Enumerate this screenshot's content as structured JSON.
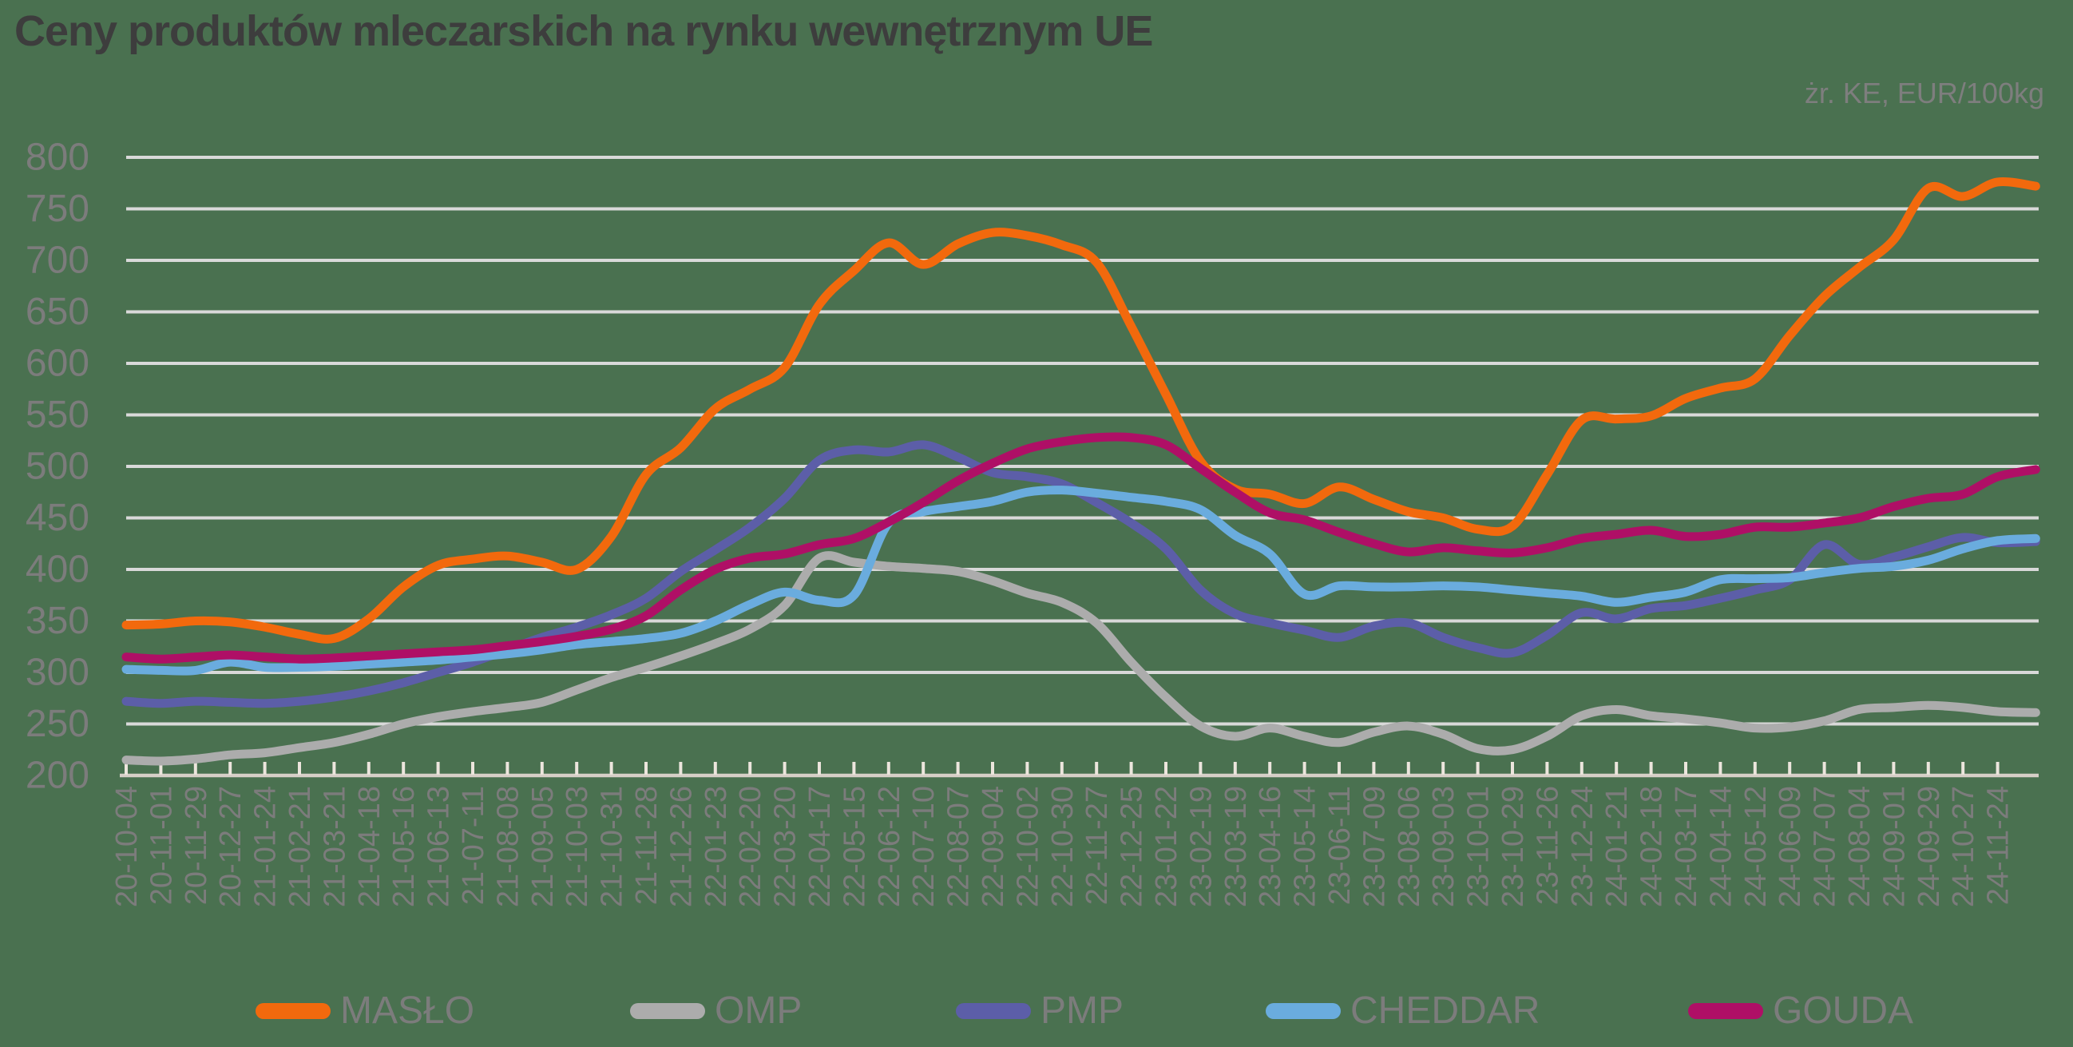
{
  "title": "Ceny produktów mleczarskich na rynku wewnętrznym UE",
  "source_note": "żr. KE, EUR/100kg",
  "colors": {
    "background": "#4a7150",
    "gridline": "#d9d9d9",
    "axis_line": "#d6cfc7",
    "tick": "#ece5dd",
    "axis_text": "#7c7c7c",
    "title_text": "#3d3d3d",
    "source_text": "#7e7e7e"
  },
  "chart_data": {
    "type": "line",
    "title": "Ceny produktów mleczarskich na rynku wewnętrznym UE",
    "unit_note": "żr. KE, EUR/100kg",
    "ylim": [
      200,
      800
    ],
    "ytick_step": 50,
    "y_ticks": [
      800,
      750,
      700,
      650,
      600,
      550,
      500,
      450,
      400,
      350,
      300,
      250,
      200
    ],
    "grid": "horizontal",
    "legend_position": "bottom",
    "x_labels_rotated_90": true,
    "categories": [
      "20-10-04",
      "20-11-01",
      "20-11-29",
      "20-12-27",
      "21-01-24",
      "21-02-21",
      "21-03-21",
      "21-04-18",
      "21-05-16",
      "21-06-13",
      "21-07-11",
      "21-08-08",
      "21-09-05",
      "21-10-03",
      "21-10-31",
      "21-11-28",
      "21-12-26",
      "22-01-23",
      "22-02-20",
      "22-03-20",
      "22-04-17",
      "22-05-15",
      "22-06-12",
      "22-07-10",
      "22-08-07",
      "22-09-04",
      "22-10-02",
      "22-10-30",
      "22-11-27",
      "22-12-25",
      "23-01-22",
      "23-02-19",
      "23-03-19",
      "23-04-16",
      "23-05-14",
      "23-06-11",
      "23-07-09",
      "23-08-06",
      "23-09-03",
      "23-10-01",
      "23-10-29",
      "23-11-26",
      "23-12-24",
      "24-01-21",
      "24-02-18",
      "24-03-17",
      "24-04-14",
      "24-05-12",
      "24-06-09",
      "24-07-07",
      "24-08-04",
      "24-09-01",
      "24-09-29",
      "24-10-27",
      "24-11-24"
    ],
    "series": [
      {
        "name": "MASŁO",
        "color": "#f2690d",
        "values": [
          346,
          347,
          350,
          349,
          344,
          337,
          333,
          352,
          383,
          404,
          410,
          413,
          407,
          400,
          432,
          492,
          518,
          556,
          575,
          596,
          657,
          690,
          717,
          696,
          716,
          727,
          724,
          715,
          698,
          636,
          570,
          505,
          478,
          473,
          464,
          480,
          468,
          456,
          450,
          439,
          442,
          492,
          545,
          546,
          549,
          566,
          576,
          585,
          627,
          665,
          693,
          720,
          770,
          762,
          776
        ],
        "tail_value": 772
      },
      {
        "name": "OMP",
        "color": "#acacac",
        "values": [
          215,
          214,
          216,
          220,
          222,
          227,
          232,
          240,
          250,
          257,
          262,
          266,
          271,
          283,
          295,
          305,
          316,
          328,
          342,
          365,
          411,
          407,
          403,
          401,
          398,
          389,
          377,
          368,
          348,
          310,
          276,
          248,
          238,
          246,
          238,
          232,
          242,
          248,
          240,
          226,
          225,
          238,
          258,
          264,
          258,
          255,
          251,
          246,
          247,
          253,
          264,
          266,
          268,
          266,
          262
        ],
        "tail_value": 261
      },
      {
        "name": "PMP",
        "color": "#5c5ea8",
        "values": [
          272,
          270,
          272,
          271,
          270,
          272,
          276,
          282,
          290,
          300,
          310,
          322,
          334,
          344,
          356,
          372,
          398,
          419,
          441,
          469,
          506,
          516,
          514,
          521,
          509,
          494,
          490,
          483,
          465,
          445,
          420,
          380,
          357,
          348,
          341,
          334,
          345,
          348,
          334,
          324,
          319,
          336,
          358,
          352,
          362,
          365,
          372,
          380,
          390,
          424,
          405,
          412,
          422,
          431,
          426
        ],
        "tail_value": 427
      },
      {
        "name": "CHEDDAR",
        "color": "#6aacde",
        "values": [
          303,
          302,
          302,
          310,
          305,
          305,
          306,
          308,
          310,
          312,
          315,
          318,
          322,
          327,
          330,
          333,
          338,
          350,
          366,
          378,
          370,
          375,
          445,
          456,
          461,
          466,
          475,
          477,
          474,
          470,
          466,
          458,
          433,
          415,
          376,
          384,
          383,
          383,
          384,
          383,
          380,
          377,
          374,
          368,
          373,
          378,
          390,
          391,
          392,
          397,
          401,
          403,
          409,
          420,
          428
        ],
        "tail_value": 430
      },
      {
        "name": "GOUDA",
        "color": "#af0f66",
        "values": [
          315,
          313,
          315,
          317,
          315,
          313,
          314,
          316,
          318,
          320,
          322,
          326,
          330,
          335,
          342,
          355,
          380,
          400,
          411,
          415,
          424,
          430,
          446,
          465,
          486,
          503,
          517,
          524,
          528,
          528,
          521,
          498,
          475,
          455,
          448,
          436,
          425,
          417,
          421,
          418,
          416,
          421,
          430,
          434,
          438,
          432,
          434,
          441,
          441,
          445,
          450,
          461,
          469,
          473,
          490
        ],
        "tail_value": 497
      }
    ]
  }
}
